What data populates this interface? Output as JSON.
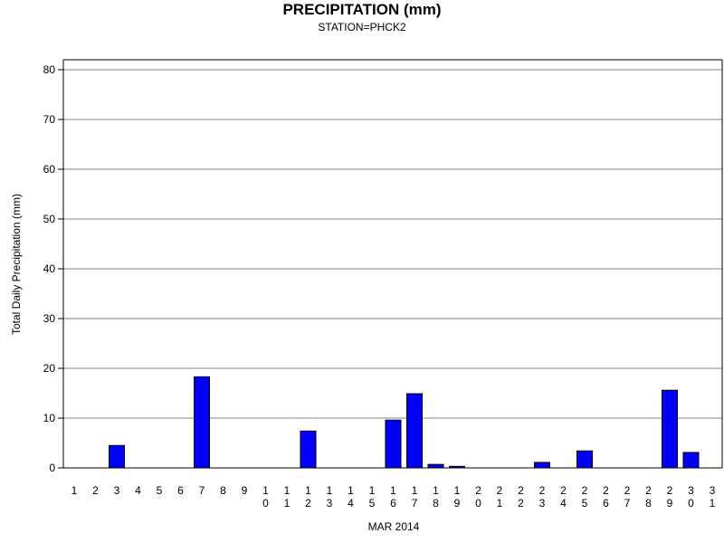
{
  "chart_data": {
    "type": "bar",
    "title": "PRECIPITATION (mm)",
    "subtitle": "STATION=PHCK2",
    "xlabel": "MAR 2014",
    "ylabel": "Total Daily Precipitation (mm)",
    "ylim": [
      0,
      80
    ],
    "yticks": [
      0,
      10,
      20,
      30,
      40,
      50,
      60,
      70,
      80
    ],
    "grid": true,
    "categories": [
      "1",
      "2",
      "3",
      "4",
      "5",
      "6",
      "7",
      "8",
      "9",
      "10",
      "11",
      "12",
      "13",
      "14",
      "15",
      "16",
      "17",
      "18",
      "19",
      "20",
      "21",
      "22",
      "23",
      "24",
      "25",
      "26",
      "27",
      "28",
      "29",
      "30",
      "31"
    ],
    "values": [
      0,
      0,
      4.5,
      0,
      0,
      0,
      18.3,
      0,
      0,
      0,
      0,
      7.4,
      0,
      0,
      0,
      9.6,
      14.9,
      0.7,
      0.3,
      0,
      0,
      0,
      1.1,
      0,
      3.4,
      0,
      0,
      0,
      15.6,
      3.1,
      0
    ],
    "colors": {
      "bar": "#0000ff",
      "bar_outline": "#000000",
      "grid": "#808080"
    }
  }
}
